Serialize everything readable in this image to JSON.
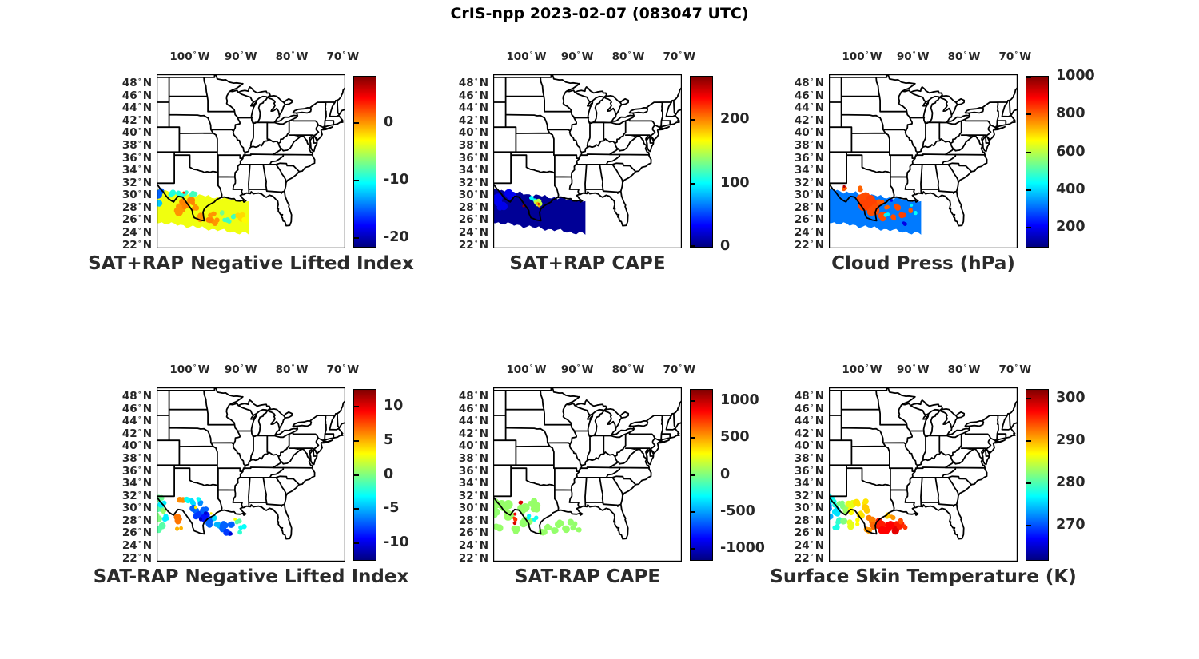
{
  "title": "CrIS-npp 2023-02-07 (083047 UTC)",
  "axes": {
    "lon_ticks": [
      -100,
      -90,
      -80,
      -70
    ],
    "lon_suffix": "W",
    "lat_ticks": [
      48,
      46,
      44,
      42,
      40,
      38,
      36,
      34,
      32,
      30,
      28,
      26,
      24,
      22
    ],
    "lat_suffix": "N",
    "degree": "°",
    "lon_range": [
      -106.5,
      -69.5
    ],
    "lat_range": [
      21.5,
      49.5
    ]
  },
  "colormap": "jet",
  "swath": {
    "lon_start": -106.7,
    "lat_center_start": 28.35,
    "lon_end": -88.4,
    "lat_center_end": 26.4,
    "half_width": 2.6
  },
  "chart_data": [
    {
      "type": "map-scatter",
      "title": "SAT+RAP Negative Lifted Index",
      "colorbar": {
        "min": -21.5,
        "max": 8,
        "ticks": [
          0,
          -10,
          -20
        ]
      },
      "band_value": -3.5,
      "clusters": [
        [
          -106.3,
          30.3,
          5,
          -15,
          4
        ],
        [
          -106.0,
          28.8,
          4,
          -12,
          3
        ],
        [
          -103.4,
          30.4,
          3.5,
          -9.5,
          4
        ],
        [
          -102.0,
          30.2,
          3,
          -9.5,
          3
        ],
        [
          -100.6,
          30.5,
          3,
          -9,
          3
        ],
        [
          -99.3,
          30.0,
          3,
          -8.5,
          3
        ],
        [
          -101.2,
          29.4,
          2.5,
          -9,
          2
        ],
        [
          -102.3,
          27.9,
          4.5,
          0,
          4
        ],
        [
          -101.2,
          28.7,
          4,
          0.5,
          4
        ],
        [
          -100.0,
          29.2,
          4,
          0.5,
          4
        ],
        [
          -99.2,
          28.3,
          3.5,
          0,
          3
        ],
        [
          -101.3,
          30.5,
          2,
          4,
          1
        ],
        [
          -97.8,
          26.6,
          3.5,
          0,
          3
        ],
        [
          -96.2,
          26.0,
          4,
          0.5,
          4
        ],
        [
          -94.9,
          25.8,
          3.5,
          0,
          3
        ],
        [
          -95.6,
          26.9,
          3,
          0,
          3
        ],
        [
          -92.8,
          25.9,
          3,
          -8.5,
          3
        ],
        [
          -91.3,
          26.5,
          3,
          -8.5,
          3
        ],
        [
          -93.6,
          27.3,
          2.5,
          -7,
          2
        ],
        [
          -89.8,
          26.9,
          4,
          -2,
          3
        ],
        [
          -89.3,
          26.0,
          3,
          -3,
          2
        ]
      ]
    },
    {
      "type": "map-scatter",
      "title": "SAT+RAP CAPE",
      "colorbar": {
        "min": 0,
        "max": 268,
        "ticks": [
          200,
          100,
          0
        ]
      },
      "band_value": 6,
      "clusters": [
        [
          -105.5,
          29.5,
          6,
          30,
          4
        ],
        [
          -103.5,
          30.3,
          5,
          30,
          3
        ],
        [
          -104.5,
          28.3,
          5,
          28,
          3
        ],
        [
          -99.0,
          29.6,
          2,
          100,
          3
        ],
        [
          -98.3,
          29.1,
          2.5,
          105,
          3
        ],
        [
          -97.8,
          28.7,
          3.5,
          150,
          4
        ],
        [
          -97.6,
          28.5,
          2,
          190,
          2
        ],
        [
          -97.7,
          28.6,
          1.2,
          255,
          1
        ],
        [
          -100.3,
          28.4,
          1.5,
          262,
          2
        ],
        [
          -100.1,
          28.1,
          1.2,
          262,
          1
        ]
      ]
    },
    {
      "type": "map-scatter",
      "title": "Cloud Press (hPa)",
      "colorbar": {
        "min": 100,
        "max": 1000,
        "ticks": [
          1000,
          800,
          600,
          400,
          200
        ]
      },
      "band_value": 320,
      "clusters": [
        [
          -106.42,
          31.7,
          2,
          630,
          1
        ],
        [
          -103.8,
          31.2,
          3,
          810,
          2
        ],
        [
          -103.5,
          31.4,
          1.5,
          950,
          1
        ],
        [
          -100.3,
          31.0,
          3,
          800,
          2
        ],
        [
          -99.8,
          29.6,
          6,
          820,
          5
        ],
        [
          -98.6,
          28.6,
          6,
          830,
          5
        ],
        [
          -97.4,
          27.6,
          5,
          820,
          4
        ],
        [
          -96.6,
          28.9,
          4,
          810,
          3
        ],
        [
          -96.0,
          26.8,
          4.5,
          820,
          4
        ],
        [
          -95.3,
          28.0,
          3,
          800,
          2
        ],
        [
          -95.0,
          27.0,
          2.5,
          430,
          2
        ],
        [
          -89.5,
          27.3,
          2.5,
          440,
          2
        ],
        [
          -90.3,
          28.3,
          2,
          430,
          1
        ],
        [
          -93.3,
          28.3,
          3.5,
          820,
          3
        ],
        [
          -92.1,
          26.9,
          3.5,
          830,
          3
        ],
        [
          -90.9,
          27.4,
          3,
          810,
          2
        ],
        [
          -93.8,
          26.3,
          3,
          820,
          2
        ],
        [
          -91.8,
          25.7,
          2.5,
          190,
          2
        ],
        [
          -94.3,
          29.0,
          2,
          210,
          1
        ]
      ]
    },
    {
      "type": "map-scatter",
      "title": "SAT-RAP Negative Lifted Index",
      "colorbar": {
        "min": -12.5,
        "max": 12.5,
        "ticks": [
          10,
          5,
          0,
          -5,
          -10
        ]
      },
      "band_value": null,
      "clusters": [
        [
          -106.3,
          31.7,
          4,
          -0.5,
          4
        ],
        [
          -106.35,
          30.0,
          4,
          -1,
          4
        ],
        [
          -106.2,
          28.5,
          4,
          0,
          3
        ],
        [
          -105.4,
          30.9,
          3.5,
          -3.5,
          3
        ],
        [
          -105.0,
          29.7,
          3,
          0.5,
          3
        ],
        [
          -104.5,
          28.4,
          3.5,
          -3.5,
          3
        ],
        [
          -105.6,
          26.9,
          4,
          -1,
          3
        ],
        [
          -101.8,
          31.2,
          3.5,
          6,
          3
        ],
        [
          -102.3,
          28.2,
          4,
          6.5,
          4
        ],
        [
          -102.1,
          27.0,
          3,
          5,
          2
        ],
        [
          -100.6,
          31.5,
          3.5,
          -3,
          3
        ],
        [
          -99.5,
          31.0,
          3,
          -4,
          3
        ],
        [
          -98.5,
          31.3,
          3,
          -3,
          2
        ],
        [
          -99.0,
          29.8,
          4,
          -7,
          4
        ],
        [
          -98.2,
          29.0,
          4.5,
          -8,
          5
        ],
        [
          -97.4,
          29.8,
          4,
          -7,
          4
        ],
        [
          -97.0,
          28.6,
          4,
          -9,
          4
        ],
        [
          -96.3,
          27.9,
          4,
          -7,
          3
        ],
        [
          -97.8,
          30.8,
          3,
          -6,
          3
        ],
        [
          -97.9,
          28.4,
          2,
          -11,
          2
        ],
        [
          -96.8,
          29.3,
          2,
          -10.5,
          1
        ],
        [
          -98.9,
          30.4,
          2,
          3.5,
          1
        ],
        [
          -95.9,
          29.2,
          2,
          3.5,
          1
        ],
        [
          -95.4,
          28.6,
          3,
          -4,
          3
        ],
        [
          -94.8,
          27.4,
          3.5,
          -5,
          3
        ],
        [
          -93.4,
          27.3,
          4,
          -7,
          4
        ],
        [
          -92.5,
          26.3,
          4,
          -8,
          4
        ],
        [
          -91.8,
          27.2,
          3.5,
          -7,
          3
        ],
        [
          -92.0,
          26.0,
          2.5,
          -10.5,
          2
        ],
        [
          -91.2,
          28.3,
          2,
          3,
          1
        ],
        [
          -90.6,
          27.9,
          3,
          -1,
          3
        ],
        [
          -89.8,
          27.1,
          3,
          -3,
          2
        ],
        [
          -90.2,
          26.2,
          2.5,
          -2,
          2
        ]
      ]
    },
    {
      "type": "map-scatter",
      "title": "SAT-RAP CAPE",
      "colorbar": {
        "min": -1150,
        "max": 1150,
        "ticks": [
          1000,
          500,
          0,
          -500,
          -1000
        ]
      },
      "band_value": null,
      "clusters": [
        [
          -106.2,
          31.0,
          5,
          50,
          4
        ],
        [
          -106.3,
          29.0,
          5,
          40,
          4
        ],
        [
          -105.5,
          27.2,
          4,
          50,
          3
        ],
        [
          -104.3,
          30.5,
          5,
          50,
          4
        ],
        [
          -103.2,
          29.0,
          5,
          60,
          4
        ],
        [
          -102.0,
          26.5,
          4,
          50,
          3
        ],
        [
          -101.0,
          30.0,
          5,
          50,
          4
        ],
        [
          -100.0,
          28.0,
          5,
          45,
          4
        ],
        [
          -99.0,
          30.8,
          4,
          50,
          3
        ],
        [
          -98.0,
          30.0,
          4,
          55,
          3
        ],
        [
          -97.0,
          26.3,
          4,
          50,
          4
        ],
        [
          -95.8,
          27.2,
          4,
          50,
          3
        ],
        [
          -94.5,
          26.5,
          4,
          45,
          3
        ],
        [
          -93.5,
          27.8,
          4,
          50,
          3
        ],
        [
          -92.2,
          26.6,
          4,
          50,
          3
        ],
        [
          -90.8,
          27.4,
          4,
          45,
          3
        ],
        [
          -89.9,
          26.6,
          3,
          50,
          2
        ],
        [
          -101.3,
          31.2,
          2.5,
          950,
          2
        ],
        [
          -102.5,
          29.3,
          2,
          900,
          1
        ],
        [
          -102.3,
          28.4,
          2.5,
          750,
          2
        ],
        [
          -102.6,
          27.7,
          2,
          950,
          1
        ],
        [
          -99.2,
          28.6,
          3,
          -300,
          2
        ],
        [
          -98.4,
          28.3,
          2.5,
          -250,
          2
        ]
      ]
    },
    {
      "type": "map-scatter",
      "title": "Surface Skin Temperature (K)",
      "colorbar": {
        "min": 262,
        "max": 302,
        "ticks": [
          300,
          290,
          280,
          270
        ]
      },
      "band_value": null,
      "clusters": [
        [
          -106.3,
          31.5,
          4,
          277,
          3
        ],
        [
          -106.4,
          30.0,
          4,
          272,
          3
        ],
        [
          -106.2,
          28.6,
          4,
          274,
          3
        ],
        [
          -105.4,
          31.0,
          4,
          278,
          3
        ],
        [
          -105.2,
          29.5,
          4,
          276,
          3
        ],
        [
          -104.6,
          28.0,
          4,
          279,
          3
        ],
        [
          -104.9,
          26.8,
          3.5,
          278,
          2
        ],
        [
          -103.9,
          30.9,
          4,
          282,
          3
        ],
        [
          -103.3,
          29.6,
          4,
          283,
          3
        ],
        [
          -103.5,
          28.0,
          3.5,
          282,
          2
        ],
        [
          -102.5,
          31.0,
          4,
          286,
          3
        ],
        [
          -102.0,
          29.5,
          4,
          287,
          3
        ],
        [
          -102.3,
          27.6,
          4,
          286,
          3
        ],
        [
          -101.0,
          30.7,
          4,
          288,
          3
        ],
        [
          -100.4,
          29.3,
          4,
          288,
          3
        ],
        [
          -100.8,
          27.9,
          3.5,
          287,
          2
        ],
        [
          -99.6,
          31.0,
          3.5,
          288,
          2
        ],
        [
          -99.3,
          30.2,
          4,
          289,
          3
        ],
        [
          -98.4,
          28.3,
          4,
          292,
          3
        ],
        [
          -97.6,
          27.3,
          4,
          293,
          3
        ],
        [
          -98.9,
          26.7,
          3.5,
          291,
          2
        ],
        [
          -95.0,
          28.8,
          3.5,
          289,
          3
        ],
        [
          -93.9,
          28.6,
          3,
          291,
          2
        ],
        [
          -96.4,
          27.6,
          4.5,
          296,
          4
        ],
        [
          -95.4,
          26.5,
          4.5,
          297,
          4
        ],
        [
          -94.4,
          27.4,
          4.5,
          297,
          4
        ],
        [
          -93.6,
          26.3,
          4,
          298,
          3
        ],
        [
          -93.0,
          27.5,
          4,
          296,
          3
        ],
        [
          -92.2,
          28.0,
          3.5,
          294,
          2
        ],
        [
          -91.6,
          27.0,
          3,
          295,
          2
        ]
      ]
    }
  ]
}
